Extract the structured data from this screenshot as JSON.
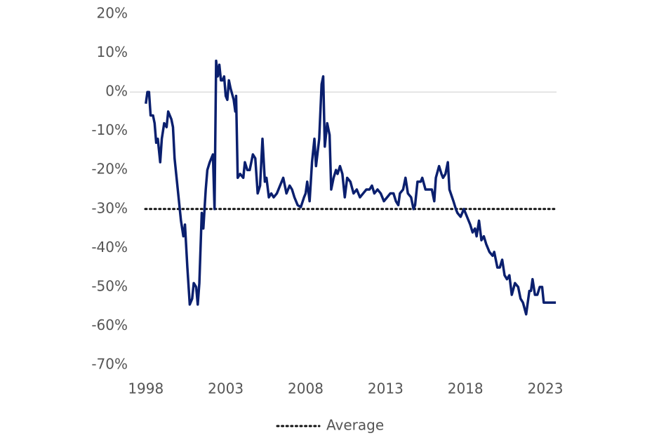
{
  "chart_data": {
    "type": "line",
    "x": [
      1998.0,
      1998.1,
      1998.2,
      1998.3,
      1998.45,
      1998.55,
      1998.65,
      1998.75,
      1998.9,
      1999.0,
      1999.15,
      1999.3,
      1999.4,
      1999.5,
      1999.6,
      1999.7,
      1999.8,
      2000.0,
      2000.2,
      2000.35,
      2000.45,
      2000.6,
      2000.75,
      2000.9,
      2001.0,
      2001.15,
      2001.25,
      2001.35,
      2001.5,
      2001.6,
      2001.75,
      2001.85,
      2002.0,
      2002.2,
      2002.3,
      2002.4,
      2002.5,
      2002.6,
      2002.7,
      2002.8,
      2002.9,
      2003.0,
      2003.1,
      2003.2,
      2003.3,
      2003.5,
      2003.6,
      2003.65,
      2003.75,
      2003.9,
      2004.1,
      2004.2,
      2004.35,
      2004.5,
      2004.7,
      2004.85,
      2005.0,
      2005.15,
      2005.3,
      2005.45,
      2005.55,
      2005.7,
      2005.85,
      2006.0,
      2006.2,
      2006.4,
      2006.6,
      2006.8,
      2007.0,
      2007.15,
      2007.3,
      2007.5,
      2007.7,
      2007.9,
      2008.0,
      2008.1,
      2008.25,
      2008.4,
      2008.55,
      2008.65,
      2008.85,
      2009.0,
      2009.1,
      2009.2,
      2009.35,
      2009.5,
      2009.6,
      2009.75,
      2009.9,
      2010.0,
      2010.15,
      2010.3,
      2010.45,
      2010.6,
      2010.8,
      2011.0,
      2011.2,
      2011.4,
      2011.6,
      2011.8,
      2012.0,
      2012.15,
      2012.3,
      2012.5,
      2012.7,
      2012.9,
      2013.1,
      2013.3,
      2013.5,
      2013.65,
      2013.8,
      2013.9,
      2014.1,
      2014.25,
      2014.4,
      2014.6,
      2014.75,
      2014.85,
      2015.0,
      2015.2,
      2015.3,
      2015.5,
      2015.7,
      2015.9,
      2016.05,
      2016.15,
      2016.35,
      2016.5,
      2016.6,
      2016.75,
      2016.9,
      2017.0,
      2017.25,
      2017.4,
      2017.5,
      2017.7,
      2017.9,
      2018.1,
      2018.3,
      2018.45,
      2018.6,
      2018.7,
      2018.85,
      2019.0,
      2019.15,
      2019.3,
      2019.5,
      2019.7,
      2019.8,
      2020.0,
      2020.15,
      2020.3,
      2020.45,
      2020.6,
      2020.75,
      2020.9,
      2021.1,
      2021.3,
      2021.45,
      2021.6,
      2021.8,
      2022.0,
      2022.1,
      2022.2,
      2022.35,
      2022.5,
      2022.65,
      2022.8,
      2022.9,
      2023.66
    ],
    "series": [
      {
        "color": "#0a1f6e",
        "values": [
          -3,
          0,
          0,
          -6,
          -6,
          -8,
          -13,
          -12,
          -18,
          -12,
          -8,
          -9,
          -5,
          -6,
          -7,
          -9,
          -17,
          -25,
          -33,
          -37,
          -34,
          -45,
          -54.5,
          -53,
          -49,
          -50,
          -54.5,
          -49,
          -31,
          -35,
          -25,
          -20,
          -18,
          -16,
          -30,
          8,
          4,
          7,
          3,
          3,
          4,
          -1,
          -2,
          3,
          1,
          -2,
          -5,
          -1,
          -22,
          -21,
          -22,
          -18,
          -20,
          -20,
          -16,
          -17,
          -26,
          -24,
          -12,
          -23,
          -22,
          -27,
          -26,
          -27,
          -26,
          -24,
          -22,
          -26,
          -24,
          -25,
          -27,
          -29,
          -29.5,
          -27,
          -26,
          -23,
          -28,
          -18,
          -12,
          -19,
          -12,
          2,
          4,
          -14,
          -8,
          -11,
          -25,
          -22,
          -20,
          -21,
          -19,
          -21,
          -27,
          -22,
          -23,
          -26,
          -25,
          -27,
          -26,
          -25,
          -25,
          -24,
          -26,
          -25,
          -26,
          -28,
          -27,
          -26,
          -26,
          -28,
          -29,
          -26,
          -25,
          -22,
          -26,
          -27,
          -30,
          -29,
          -23,
          -23,
          -22,
          -25,
          -25,
          -25,
          -28,
          -22,
          -19,
          -21,
          -22,
          -21,
          -18,
          -25,
          -28,
          -30,
          -31,
          -32,
          -30,
          -32,
          -34,
          -36,
          -35,
          -37,
          -33,
          -38,
          -37,
          -39,
          -41,
          -42,
          -41,
          -45,
          -45,
          -43,
          -47,
          -48,
          -47,
          -52,
          -49,
          -50,
          -53,
          -54,
          -57,
          -51,
          -51,
          -48,
          -52,
          -52,
          -50,
          -50,
          -54,
          -54
        ]
      }
    ],
    "average": {
      "name": "Average",
      "value": -30,
      "color": "#111111"
    },
    "xlim": [
      1997,
      2023.7
    ],
    "xticks": [
      1998,
      2003,
      2008,
      2013,
      2018,
      2023
    ],
    "ylim": [
      -70,
      20
    ],
    "yticks": [
      {
        "value": 20,
        "label": "20%"
      },
      {
        "value": 10,
        "label": "10%"
      },
      {
        "value": 0,
        "label": "0%"
      },
      {
        "value": -10,
        "label": "-10%"
      },
      {
        "value": -20,
        "label": "-20%"
      },
      {
        "value": -30,
        "label": "-30%"
      },
      {
        "value": -40,
        "label": "-40%"
      },
      {
        "value": -50,
        "label": "-50%"
      },
      {
        "value": -60,
        "label": "-60%"
      },
      {
        "value": -70,
        "label": "-70%"
      }
    ],
    "zero_line": true,
    "legend": "bottom"
  }
}
